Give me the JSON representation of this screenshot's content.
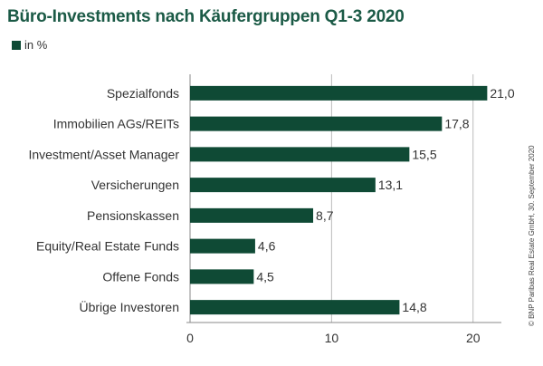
{
  "chart_data": {
    "type": "bar",
    "orientation": "horizontal",
    "title": "Büro-Investments nach Käufergruppen Q1-3 2020",
    "legend": "in %",
    "categories": [
      "Spezialfonds",
      "Immobilien AGs/REITs",
      "Investment/Asset Manager",
      "Versicherungen",
      "Pensionskassen",
      "Equity/Real Estate Funds",
      "Offene Fonds",
      "Übrige Investoren"
    ],
    "values": [
      21.0,
      17.8,
      15.5,
      13.1,
      8.7,
      4.6,
      4.5,
      14.8
    ],
    "value_labels": [
      "21,0",
      "17,8",
      "15,5",
      "13,1",
      "8,7",
      "4,6",
      "4,5",
      "14,8"
    ],
    "xlim": [
      0,
      22
    ],
    "xticks": [
      0,
      10,
      20
    ],
    "xtick_labels": [
      "0",
      "10",
      "20"
    ],
    "grid": "vertical",
    "bar_color": "#0f4a35",
    "title_color": "#1b5a46"
  },
  "credit": "© BNP Paribas Real Estate GmbH, 30. September 2020"
}
